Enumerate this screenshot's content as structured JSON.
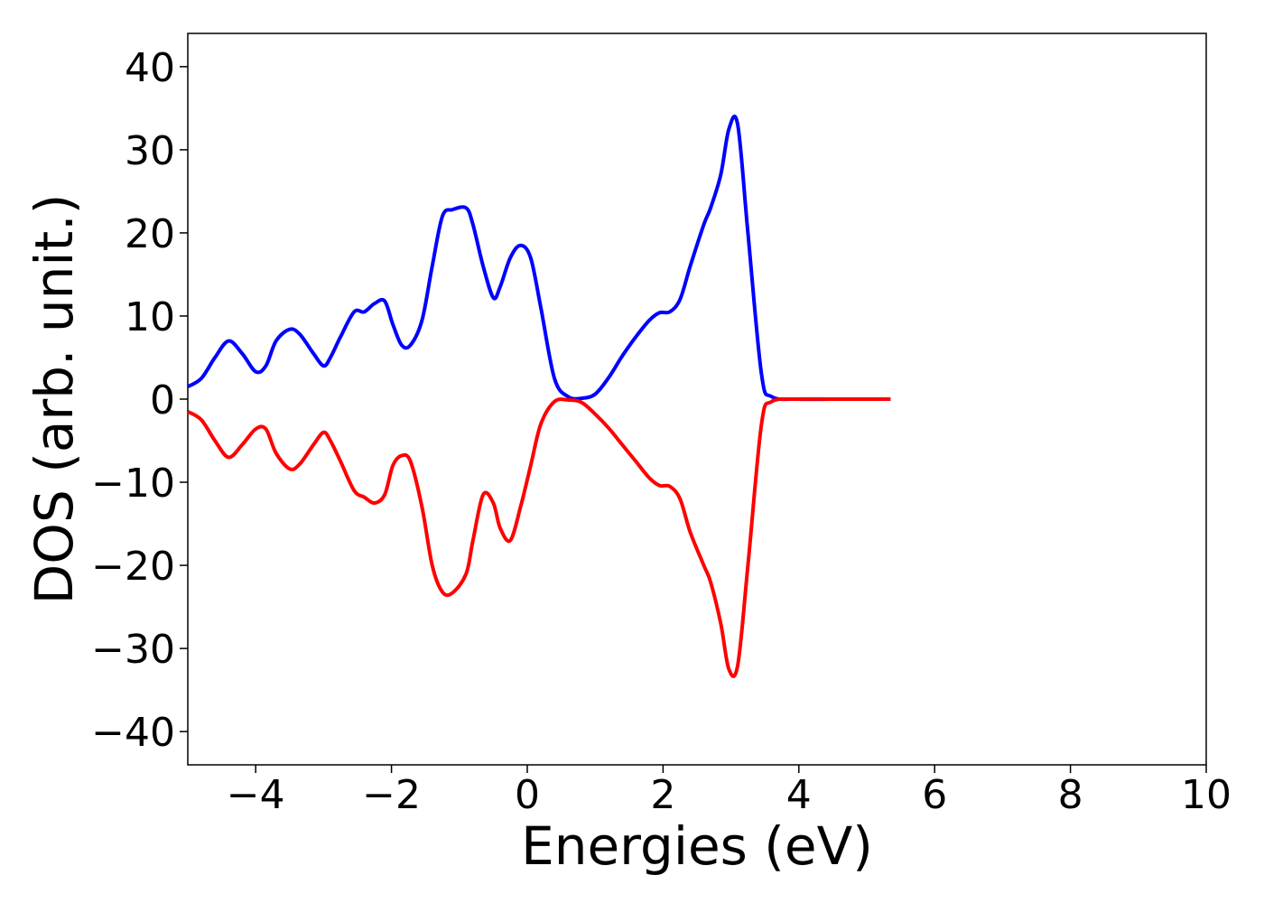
{
  "chart_data": {
    "type": "line",
    "title": "",
    "xlabel": "Energies (eV)",
    "ylabel": "DOS (arb. unit.)",
    "xlim": [
      -5,
      10
    ],
    "ylim": [
      -44,
      44
    ],
    "x_ticks": [
      -4,
      -2,
      0,
      2,
      4,
      6,
      8,
      10
    ],
    "x_tick_labels": [
      "−4",
      "−2",
      "0",
      "2",
      "4",
      "6",
      "8",
      "10"
    ],
    "y_ticks": [
      -40,
      -30,
      -20,
      -10,
      0,
      10,
      20,
      30,
      40
    ],
    "y_tick_labels": [
      "−40",
      "−30",
      "−20",
      "−10",
      "0",
      "10",
      "20",
      "30",
      "40"
    ],
    "grid": false,
    "legend": "none",
    "series": [
      {
        "color": "#0000ff",
        "x": [
          -5.0,
          -4.8,
          -4.6,
          -4.4,
          -4.2,
          -4.0,
          -3.85,
          -3.7,
          -3.5,
          -3.35,
          -3.15,
          -3.0,
          -2.9,
          -2.75,
          -2.55,
          -2.4,
          -2.25,
          -2.1,
          -1.98,
          -1.85,
          -1.72,
          -1.55,
          -1.4,
          -1.25,
          -1.1,
          -0.9,
          -0.8,
          -0.65,
          -0.5,
          -0.4,
          -0.25,
          -0.1,
          0.05,
          0.2,
          0.4,
          0.6,
          0.8,
          1.0,
          1.2,
          1.4,
          1.6,
          1.8,
          1.95,
          2.1,
          2.25,
          2.4,
          2.6,
          2.7,
          2.85,
          2.97,
          3.1,
          3.25,
          3.45,
          3.6,
          4.0,
          4.5,
          5.0,
          5.35
        ],
        "values": [
          1.5,
          2.5,
          5.0,
          7.0,
          5.5,
          3.3,
          4.0,
          7.0,
          8.4,
          7.8,
          5.5,
          4.0,
          5.0,
          7.5,
          10.5,
          10.5,
          11.5,
          11.8,
          9.0,
          6.5,
          6.5,
          9.5,
          16.0,
          22.0,
          22.8,
          23.0,
          21.0,
          16.0,
          12.2,
          13.5,
          17.0,
          18.5,
          17.0,
          11.0,
          2.5,
          0.3,
          0.1,
          0.6,
          2.6,
          5.2,
          7.5,
          9.5,
          10.4,
          10.5,
          12.0,
          16.0,
          21.0,
          23.0,
          27.0,
          32.5,
          33.0,
          20.0,
          3.0,
          0.3,
          0.0,
          0.0,
          0.0,
          0.0
        ]
      },
      {
        "color": "#ff0000",
        "x": [
          -5.0,
          -4.8,
          -4.6,
          -4.4,
          -4.2,
          -4.0,
          -3.85,
          -3.7,
          -3.5,
          -3.35,
          -3.15,
          -3.0,
          -2.9,
          -2.75,
          -2.55,
          -2.4,
          -2.25,
          -2.1,
          -1.98,
          -1.85,
          -1.72,
          -1.55,
          -1.4,
          -1.25,
          -1.1,
          -0.9,
          -0.8,
          -0.65,
          -0.5,
          -0.4,
          -0.25,
          -0.1,
          0.05,
          0.2,
          0.4,
          0.6,
          0.8,
          1.0,
          1.2,
          1.4,
          1.6,
          1.8,
          1.95,
          2.1,
          2.25,
          2.4,
          2.6,
          2.7,
          2.85,
          2.97,
          3.1,
          3.25,
          3.45,
          3.6,
          4.0,
          4.5,
          5.0,
          5.35
        ],
        "values": [
          -1.5,
          -2.5,
          -5.0,
          -7.0,
          -5.5,
          -3.6,
          -3.6,
          -6.5,
          -8.4,
          -7.8,
          -5.5,
          -4.0,
          -5.0,
          -7.5,
          -11.0,
          -11.8,
          -12.5,
          -11.5,
          -8.0,
          -6.8,
          -7.5,
          -13.0,
          -20.0,
          -23.2,
          -23.3,
          -21.0,
          -17.0,
          -11.5,
          -12.5,
          -15.5,
          -17.0,
          -13.0,
          -8.0,
          -3.0,
          -0.3,
          -0.1,
          -0.4,
          -1.8,
          -3.5,
          -5.5,
          -7.5,
          -9.5,
          -10.4,
          -10.5,
          -12.0,
          -16.0,
          -20.0,
          -22.0,
          -27.0,
          -32.5,
          -32.0,
          -20.0,
          -3.0,
          -0.3,
          0.0,
          0.0,
          0.0,
          0.0
        ]
      }
    ]
  }
}
